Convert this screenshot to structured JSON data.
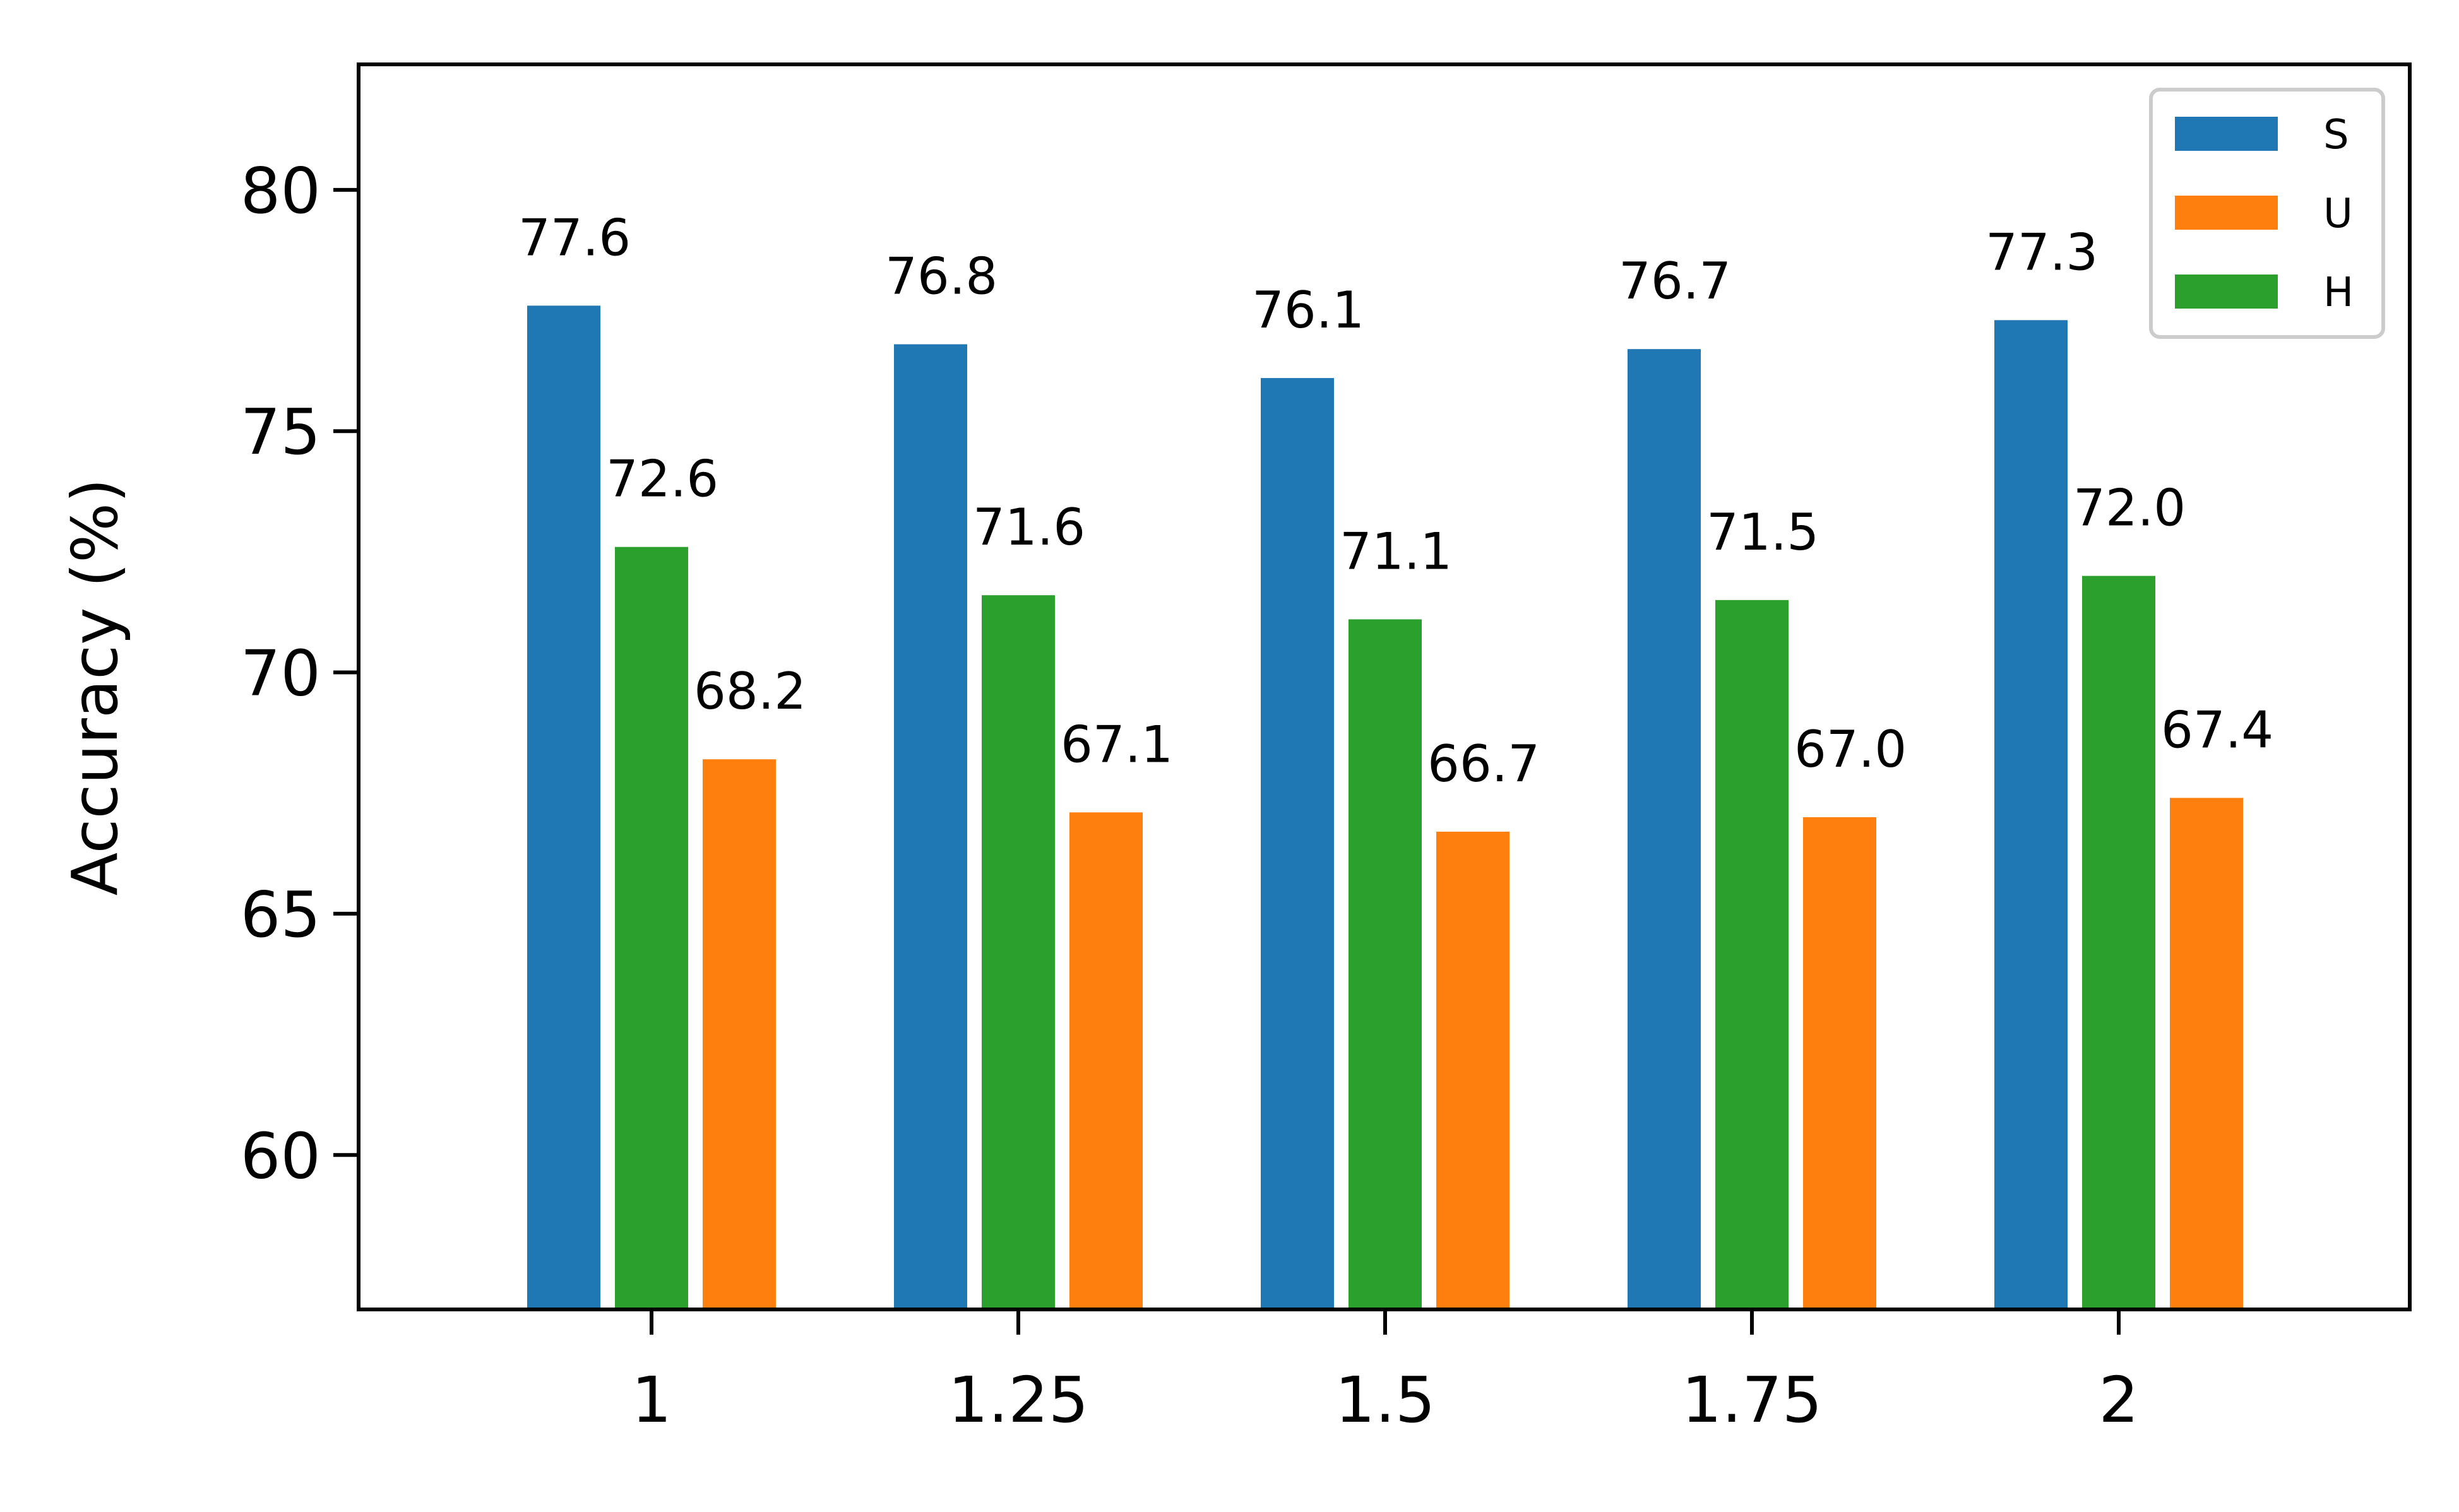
{
  "chart_data": {
    "type": "bar",
    "categories": [
      "1",
      "1.25",
      "1.5",
      "1.75",
      "2"
    ],
    "series": [
      {
        "name": "S",
        "color": "#1f77b4",
        "values": [
          77.6,
          76.8,
          76.1,
          76.7,
          77.3
        ]
      },
      {
        "name": "H",
        "color": "#2ca02c",
        "values": [
          72.6,
          71.6,
          71.1,
          71.5,
          72.0
        ]
      },
      {
        "name": "U",
        "color": "#ff7f0e",
        "values": [
          68.2,
          67.1,
          66.7,
          67.0,
          67.4
        ]
      }
    ],
    "data_labels": [
      [
        "77.6",
        "76.8",
        "76.1",
        "76.7",
        "77.3"
      ],
      [
        "72.6",
        "71.6",
        "71.1",
        "71.5",
        "72.0"
      ],
      [
        "68.2",
        "67.1",
        "66.7",
        "67.0",
        "67.4"
      ]
    ],
    "legend_order": [
      "S",
      "U",
      "H"
    ],
    "legend_position": "top-right",
    "ylabel": "Accuracy (%)",
    "xlabel": "",
    "yticks": [
      "60",
      "65",
      "70",
      "75",
      "80"
    ],
    "ylim": [
      56.8,
      82.6
    ],
    "grid": false
  }
}
